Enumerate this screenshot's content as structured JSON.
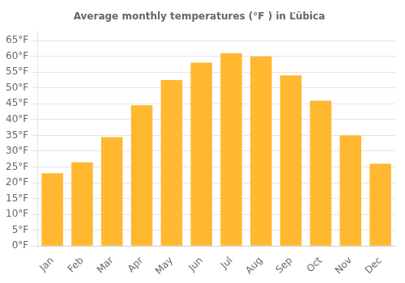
{
  "chart_data": {
    "type": "bar",
    "title": "Average monthly temperatures (°F ) in Ľübica",
    "categories": [
      "Jan",
      "Feb",
      "Mar",
      "Apr",
      "May",
      "Jun",
      "Jul",
      "Aug",
      "Sep",
      "Oct",
      "Nov",
      "Dec"
    ],
    "values": [
      23,
      26.5,
      34.5,
      44.5,
      52.5,
      58,
      61,
      60,
      54,
      46,
      35,
      26
    ],
    "color": "#FFB830",
    "ylim": [
      0,
      68
    ],
    "yticks": [
      {
        "value": 0,
        "label": "0°F"
      },
      {
        "value": 5,
        "label": "5°F"
      },
      {
        "value": 10,
        "label": "10°F"
      },
      {
        "value": 15,
        "label": "15°F"
      },
      {
        "value": 20,
        "label": "20°F"
      },
      {
        "value": 25,
        "label": "25°F"
      },
      {
        "value": 30,
        "label": "30°F"
      },
      {
        "value": 35,
        "label": "35°F"
      },
      {
        "value": 40,
        "label": "40°F"
      },
      {
        "value": 45,
        "label": "45°F"
      },
      {
        "value": 50,
        "label": "50°F"
      },
      {
        "value": 55,
        "label": "55°F"
      },
      {
        "value": 60,
        "label": "60°F"
      },
      {
        "value": 65,
        "label": "65°F"
      }
    ],
    "grid": true
  }
}
